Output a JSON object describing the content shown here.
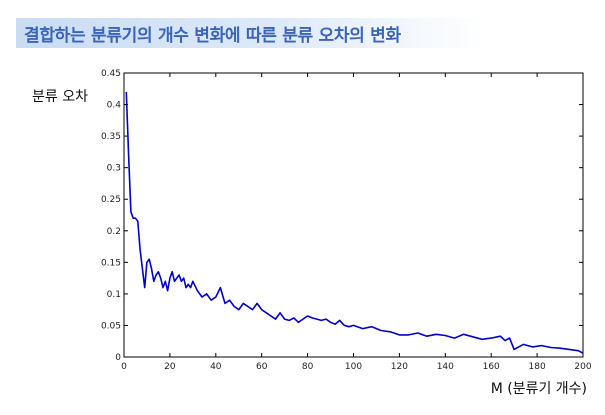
{
  "page": {
    "title": "결합하는 분류기의 개수 변화에 따른 분류 오차의 변화",
    "accent_color": "#3a64b8",
    "banner_color": "#c9dcf4"
  },
  "chart_data": {
    "type": "line",
    "title": "",
    "xlabel": "M (분류기 개수)",
    "ylabel": "분류 오차",
    "xlim": [
      0,
      200
    ],
    "ylim": [
      0,
      0.45
    ],
    "xticks": [
      0,
      20,
      40,
      60,
      80,
      100,
      120,
      140,
      160,
      180,
      200
    ],
    "yticks": [
      0,
      0.05,
      0.1,
      0.15,
      0.2,
      0.25,
      0.3,
      0.35,
      0.4,
      0.45
    ],
    "grid": false,
    "series": [
      {
        "color": "#0000cc",
        "x": [
          1,
          2,
          3,
          4,
          5,
          6,
          7,
          8,
          9,
          10,
          11,
          12,
          13,
          14,
          15,
          16,
          17,
          18,
          19,
          20,
          21,
          22,
          23,
          24,
          25,
          26,
          27,
          28,
          29,
          30,
          32,
          34,
          36,
          38,
          40,
          42,
          44,
          46,
          48,
          50,
          52,
          54,
          56,
          58,
          60,
          62,
          64,
          66,
          68,
          70,
          72,
          74,
          76,
          78,
          80,
          82,
          84,
          86,
          88,
          90,
          92,
          94,
          96,
          98,
          100,
          104,
          108,
          112,
          116,
          120,
          124,
          128,
          132,
          136,
          140,
          144,
          148,
          152,
          156,
          160,
          164,
          166,
          168,
          170,
          174,
          178,
          182,
          186,
          190,
          194,
          198,
          200
        ],
        "y": [
          0.42,
          0.32,
          0.23,
          0.22,
          0.22,
          0.215,
          0.17,
          0.14,
          0.11,
          0.15,
          0.155,
          0.14,
          0.12,
          0.13,
          0.135,
          0.125,
          0.11,
          0.12,
          0.105,
          0.125,
          0.135,
          0.12,
          0.125,
          0.13,
          0.12,
          0.125,
          0.11,
          0.115,
          0.11,
          0.12,
          0.105,
          0.095,
          0.1,
          0.09,
          0.095,
          0.11,
          0.085,
          0.09,
          0.08,
          0.075,
          0.085,
          0.08,
          0.075,
          0.085,
          0.075,
          0.07,
          0.065,
          0.06,
          0.07,
          0.06,
          0.058,
          0.062,
          0.055,
          0.06,
          0.065,
          0.062,
          0.06,
          0.058,
          0.06,
          0.055,
          0.052,
          0.058,
          0.05,
          0.048,
          0.05,
          0.045,
          0.048,
          0.042,
          0.04,
          0.035,
          0.035,
          0.038,
          0.033,
          0.036,
          0.034,
          0.03,
          0.036,
          0.032,
          0.028,
          0.03,
          0.033,
          0.026,
          0.03,
          0.012,
          0.02,
          0.016,
          0.018,
          0.015,
          0.014,
          0.012,
          0.01,
          0.006
        ]
      }
    ]
  }
}
